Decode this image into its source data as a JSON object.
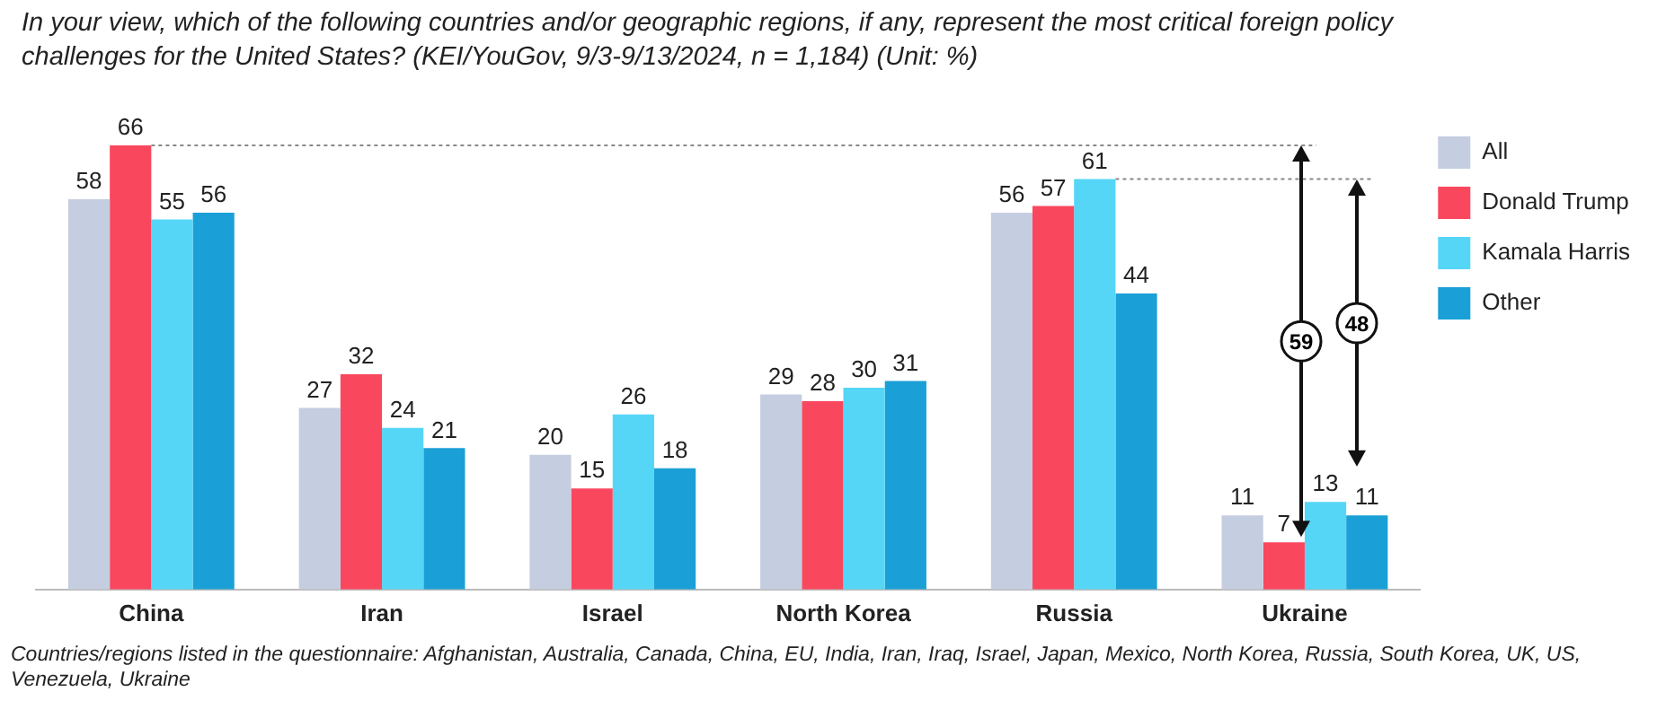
{
  "chart_data": {
    "type": "bar",
    "title": "In your view, which of the following countries and/or geographic regions, if any, represent the most critical foreign policy challenges for the United States?  (KEI/YouGov, 9/3-9/13/2024,  n = 1,184) (Unit: %)",
    "categories": [
      "China",
      "Iran",
      "Israel",
      "North Korea",
      "Russia",
      "Ukraine"
    ],
    "series": [
      {
        "name": "All",
        "color": "#c5cde0",
        "values": [
          58,
          27,
          20,
          29,
          56,
          11
        ]
      },
      {
        "name": "Donald Trump",
        "color": "#f9475e",
        "values": [
          66,
          32,
          15,
          28,
          57,
          7
        ]
      },
      {
        "name": "Kamala Harris",
        "color": "#56d6f7",
        "values": [
          55,
          24,
          26,
          30,
          61,
          13
        ]
      },
      {
        "name": "Other",
        "color": "#1aa0d6",
        "values": [
          56,
          21,
          18,
          31,
          44,
          11
        ]
      }
    ],
    "ref_lines": [
      {
        "axis": "y",
        "value": 66,
        "color": "#888888",
        "line_style": "dotted"
      },
      {
        "axis": "y",
        "value": 61,
        "color": "#888888",
        "line_style": "dotted"
      }
    ],
    "data_labels": true,
    "legend": "top right",
    "annotations": [
      "59",
      "48",
      "Countries/regions listed in the questionnaire: Afghanistan, Australia, Canada, China, EU, India, Iran, Iraq, Israel, Japan, Mexico, North Korea, Russia, South Korea, UK, US, Venezuela, Ukraine"
    ]
  }
}
